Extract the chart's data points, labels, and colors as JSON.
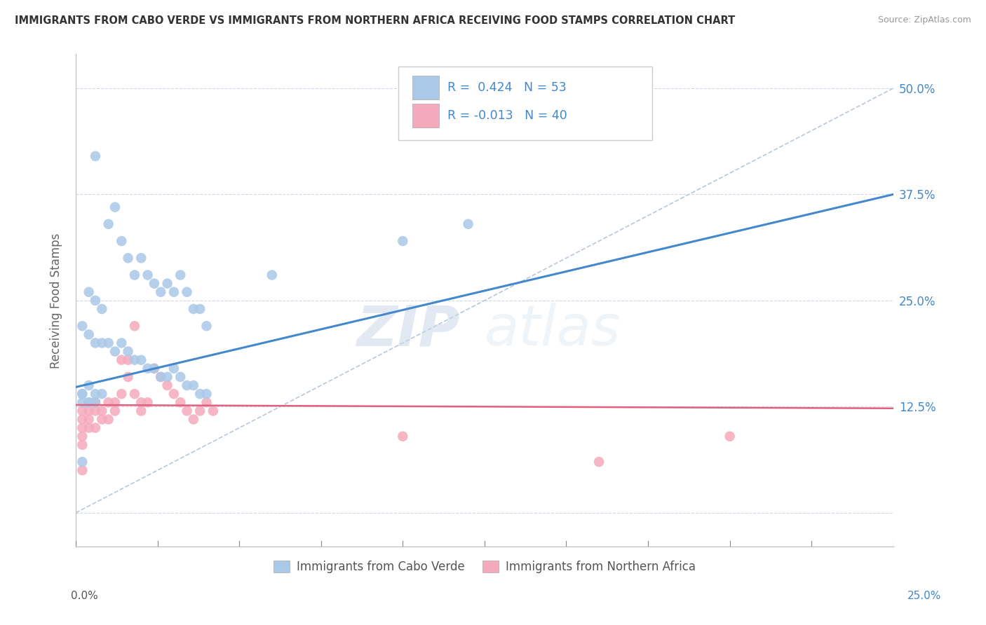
{
  "title": "IMMIGRANTS FROM CABO VERDE VS IMMIGRANTS FROM NORTHERN AFRICA RECEIVING FOOD STAMPS CORRELATION CHART",
  "source": "Source: ZipAtlas.com",
  "ylabel": "Receiving Food Stamps",
  "yticks": [
    0.0,
    0.125,
    0.25,
    0.375,
    0.5
  ],
  "ytick_labels": [
    "",
    "12.5%",
    "25.0%",
    "37.5%",
    "50.0%"
  ],
  "xmin": 0.0,
  "xmax": 0.25,
  "ymin": -0.04,
  "ymax": 0.54,
  "legend1_R": "0.424",
  "legend1_N": "53",
  "legend2_R": "-0.013",
  "legend2_N": "40",
  "legend_label1": "Immigrants from Cabo Verde",
  "legend_label2": "Immigrants from Northern Africa",
  "blue_color": "#aac8e8",
  "pink_color": "#f5aabb",
  "blue_line_color": "#4488cc",
  "pink_line_color": "#e06080",
  "dash_line_color": "#b8c8dc",
  "cabo_verde_x": [
    0.006,
    0.01,
    0.012,
    0.014,
    0.016,
    0.018,
    0.02,
    0.022,
    0.024,
    0.026,
    0.028,
    0.03,
    0.032,
    0.034,
    0.036,
    0.038,
    0.04,
    0.004,
    0.006,
    0.008,
    0.002,
    0.004,
    0.006,
    0.008,
    0.01,
    0.012,
    0.014,
    0.016,
    0.018,
    0.02,
    0.022,
    0.024,
    0.026,
    0.028,
    0.03,
    0.032,
    0.034,
    0.036,
    0.038,
    0.04,
    0.004,
    0.006,
    0.008,
    0.002,
    0.004,
    0.006,
    0.002,
    0.004,
    0.002,
    0.06,
    0.1,
    0.12,
    0.002
  ],
  "cabo_verde_y": [
    0.42,
    0.34,
    0.36,
    0.32,
    0.3,
    0.28,
    0.3,
    0.28,
    0.27,
    0.26,
    0.27,
    0.26,
    0.28,
    0.26,
    0.24,
    0.24,
    0.22,
    0.26,
    0.25,
    0.24,
    0.22,
    0.21,
    0.2,
    0.2,
    0.2,
    0.19,
    0.2,
    0.19,
    0.18,
    0.18,
    0.17,
    0.17,
    0.16,
    0.16,
    0.17,
    0.16,
    0.15,
    0.15,
    0.14,
    0.14,
    0.15,
    0.14,
    0.14,
    0.14,
    0.13,
    0.13,
    0.13,
    0.13,
    0.06,
    0.28,
    0.32,
    0.34,
    0.14
  ],
  "north_africa_x": [
    0.002,
    0.002,
    0.002,
    0.002,
    0.004,
    0.004,
    0.004,
    0.006,
    0.006,
    0.006,
    0.008,
    0.008,
    0.01,
    0.01,
    0.012,
    0.012,
    0.014,
    0.014,
    0.016,
    0.016,
    0.018,
    0.018,
    0.02,
    0.02,
    0.022,
    0.024,
    0.026,
    0.028,
    0.03,
    0.032,
    0.034,
    0.036,
    0.038,
    0.04,
    0.042,
    0.002,
    0.1,
    0.16,
    0.2,
    0.002
  ],
  "north_africa_y": [
    0.12,
    0.11,
    0.1,
    0.09,
    0.12,
    0.11,
    0.1,
    0.13,
    0.12,
    0.1,
    0.12,
    0.11,
    0.13,
    0.11,
    0.13,
    0.12,
    0.18,
    0.14,
    0.18,
    0.16,
    0.22,
    0.14,
    0.13,
    0.12,
    0.13,
    0.17,
    0.16,
    0.15,
    0.14,
    0.13,
    0.12,
    0.11,
    0.12,
    0.13,
    0.12,
    0.08,
    0.09,
    0.06,
    0.09,
    0.05
  ],
  "watermark_zip": "ZIP",
  "watermark_atlas": "atlas",
  "background_color": "#ffffff",
  "grid_color": "#d0d8e8"
}
